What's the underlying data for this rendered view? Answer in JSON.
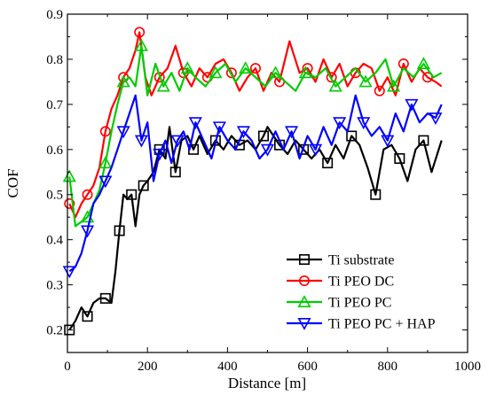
{
  "chart_data": {
    "type": "line",
    "xlabel": "Distance [m]",
    "ylabel": "COF",
    "xlim": [
      0,
      1000
    ],
    "ylim": [
      0.15,
      0.9
    ],
    "xticks": [
      0,
      200,
      400,
      600,
      800,
      1000
    ],
    "yticks": [
      0.2,
      0.3,
      0.4,
      0.5,
      0.6,
      0.7,
      0.8,
      0.9
    ],
    "grid": false,
    "legend_position": "bottom-right",
    "series": [
      {
        "name": "Ti substrate",
        "color": "#000000",
        "marker": "square",
        "x": [
          5,
          20,
          35,
          50,
          65,
          80,
          95,
          110,
          120,
          130,
          140,
          150,
          160,
          170,
          180,
          190,
          200,
          215,
          230,
          245,
          255,
          270,
          285,
          300,
          315,
          330,
          350,
          370,
          390,
          410,
          430,
          450,
          470,
          490,
          500,
          515,
          530,
          550,
          570,
          590,
          610,
          630,
          650,
          670,
          690,
          710,
          730,
          750,
          770,
          790,
          810,
          830,
          850,
          870,
          890,
          910,
          935
        ],
        "y": [
          0.2,
          0.22,
          0.25,
          0.23,
          0.26,
          0.27,
          0.27,
          0.26,
          0.33,
          0.42,
          0.5,
          0.49,
          0.5,
          0.43,
          0.5,
          0.52,
          0.53,
          0.55,
          0.6,
          0.58,
          0.65,
          0.55,
          0.62,
          0.63,
          0.6,
          0.63,
          0.59,
          0.62,
          0.6,
          0.63,
          0.61,
          0.62,
          0.6,
          0.63,
          0.65,
          0.63,
          0.61,
          0.59,
          0.62,
          0.6,
          0.58,
          0.6,
          0.57,
          0.61,
          0.58,
          0.63,
          0.61,
          0.56,
          0.5,
          0.6,
          0.61,
          0.58,
          0.53,
          0.6,
          0.62,
          0.55,
          0.62
        ]
      },
      {
        "name": "Ti PEO DC",
        "color": "#ff0000",
        "marker": "circle",
        "x": [
          5,
          20,
          35,
          50,
          65,
          80,
          95,
          110,
          125,
          140,
          155,
          170,
          180,
          195,
          210,
          230,
          250,
          270,
          290,
          310,
          330,
          350,
          370,
          390,
          410,
          430,
          450,
          470,
          490,
          510,
          530,
          555,
          580,
          600,
          620,
          640,
          660,
          680,
          700,
          720,
          740,
          760,
          780,
          800,
          820,
          840,
          860,
          880,
          900,
          920,
          935
        ],
        "y": [
          0.48,
          0.45,
          0.48,
          0.5,
          0.52,
          0.56,
          0.64,
          0.69,
          0.72,
          0.76,
          0.78,
          0.82,
          0.86,
          0.76,
          0.72,
          0.76,
          0.78,
          0.83,
          0.77,
          0.74,
          0.78,
          0.76,
          0.79,
          0.8,
          0.77,
          0.73,
          0.76,
          0.78,
          0.73,
          0.77,
          0.75,
          0.84,
          0.77,
          0.78,
          0.75,
          0.8,
          0.76,
          0.79,
          0.74,
          0.77,
          0.79,
          0.78,
          0.73,
          0.76,
          0.72,
          0.79,
          0.75,
          0.78,
          0.76,
          0.75,
          0.74
        ]
      },
      {
        "name": "Ti PEO PC",
        "color": "#00cc00",
        "marker": "triangle-up",
        "x": [
          5,
          20,
          35,
          50,
          65,
          80,
          95,
          110,
          125,
          140,
          155,
          170,
          185,
          200,
          220,
          240,
          260,
          280,
          300,
          320,
          345,
          370,
          395,
          420,
          445,
          470,
          495,
          520,
          545,
          570,
          595,
          620,
          645,
          670,
          695,
          720,
          745,
          770,
          795,
          815,
          840,
          865,
          890,
          915,
          935
        ],
        "y": [
          0.54,
          0.43,
          0.44,
          0.45,
          0.48,
          0.51,
          0.57,
          0.64,
          0.7,
          0.75,
          0.76,
          0.74,
          0.83,
          0.72,
          0.79,
          0.74,
          0.77,
          0.73,
          0.78,
          0.76,
          0.74,
          0.77,
          0.79,
          0.75,
          0.78,
          0.76,
          0.74,
          0.77,
          0.75,
          0.73,
          0.77,
          0.76,
          0.78,
          0.74,
          0.76,
          0.78,
          0.75,
          0.77,
          0.8,
          0.74,
          0.78,
          0.76,
          0.79,
          0.76,
          0.77
        ]
      },
      {
        "name": "Ti PEO PC + HAP",
        "color": "#0000ff",
        "marker": "triangle-down",
        "x": [
          5,
          20,
          35,
          50,
          65,
          80,
          95,
          110,
          125,
          140,
          155,
          170,
          185,
          200,
          215,
          230,
          245,
          260,
          275,
          290,
          305,
          320,
          340,
          360,
          380,
          400,
          420,
          440,
          460,
          480,
          500,
          520,
          540,
          560,
          580,
          600,
          620,
          640,
          660,
          680,
          700,
          720,
          740,
          760,
          780,
          800,
          820,
          840,
          860,
          880,
          900,
          920,
          935
        ],
        "y": [
          0.33,
          0.34,
          0.37,
          0.42,
          0.48,
          0.5,
          0.53,
          0.56,
          0.6,
          0.64,
          0.68,
          0.72,
          0.62,
          0.66,
          0.53,
          0.59,
          0.62,
          0.57,
          0.62,
          0.64,
          0.6,
          0.66,
          0.62,
          0.58,
          0.65,
          0.62,
          0.6,
          0.64,
          0.62,
          0.58,
          0.6,
          0.64,
          0.6,
          0.64,
          0.58,
          0.63,
          0.6,
          0.65,
          0.61,
          0.66,
          0.64,
          0.72,
          0.66,
          0.63,
          0.65,
          0.62,
          0.68,
          0.64,
          0.7,
          0.66,
          0.68,
          0.67,
          0.7
        ]
      }
    ]
  }
}
